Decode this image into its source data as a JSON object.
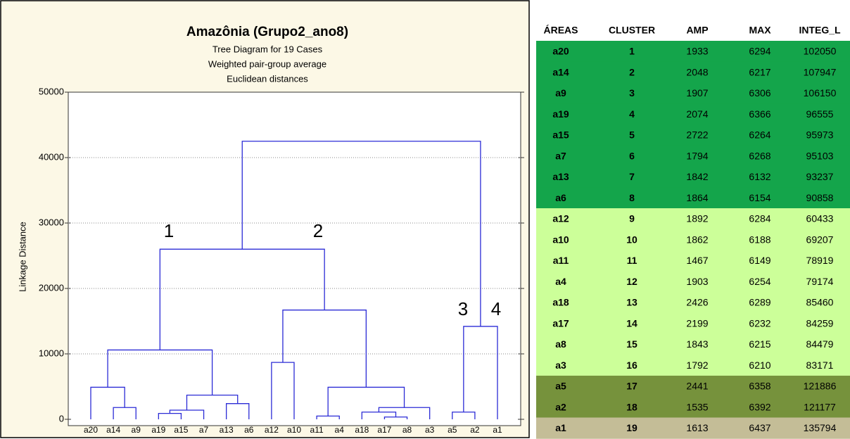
{
  "chart_data": {
    "type": "dendrogram",
    "title": "Amazônia (Grupo2_ano8)",
    "subtitle": [
      "Tree Diagram for 19 Cases",
      "Weighted pair-group average",
      "Euclidean distances"
    ],
    "ylabel": "Linkage Distance",
    "categories": [
      "a20",
      "a14",
      "a9",
      "a19",
      "a15",
      "a7",
      "a13",
      "a6",
      "a12",
      "a10",
      "a11",
      "a4",
      "a18",
      "a17",
      "a8",
      "a3",
      "a5",
      "a2",
      "a1"
    ],
    "merges": [
      [
        13,
        14,
        350
      ],
      [
        10,
        11,
        500
      ],
      [
        3,
        4,
        900
      ],
      [
        12,
        19,
        1100
      ],
      [
        16,
        17,
        1100
      ],
      [
        21,
        5,
        1400
      ],
      [
        1,
        2,
        1800
      ],
      [
        22,
        15,
        1800
      ],
      [
        6,
        7,
        2400
      ],
      [
        24,
        27,
        3700
      ],
      [
        0,
        25,
        4900
      ],
      [
        20,
        26,
        4900
      ],
      [
        8,
        9,
        8700
      ],
      [
        29,
        28,
        10600
      ],
      [
        23,
        18,
        14200
      ],
      [
        31,
        30,
        16700
      ],
      [
        32,
        34,
        26000
      ],
      [
        35,
        33,
        42500
      ]
    ],
    "color": "#2b2bd6",
    "ylim": [
      0,
      50000
    ],
    "yticks": [
      0,
      10000,
      20000,
      30000,
      40000,
      50000
    ],
    "grid": true,
    "annotations": [
      "1",
      "2",
      "3",
      "4"
    ]
  },
  "table": {
    "headers": [
      "ÁREAS",
      "CLUSTER",
      "AMP",
      "MAX",
      "INTEG_L"
    ],
    "rows": [
      [
        "a20",
        1,
        1933,
        6294,
        102050
      ],
      [
        "a14",
        2,
        2048,
        6217,
        107947
      ],
      [
        "a9",
        3,
        1907,
        6306,
        106150
      ],
      [
        "a19",
        4,
        2074,
        6366,
        96555
      ],
      [
        "a15",
        5,
        2722,
        6264,
        95973
      ],
      [
        "a7",
        6,
        1794,
        6268,
        95103
      ],
      [
        "a13",
        7,
        1842,
        6132,
        93237
      ],
      [
        "a6",
        8,
        1864,
        6154,
        90858
      ],
      [
        "a12",
        9,
        1892,
        6284,
        60433
      ],
      [
        "a10",
        10,
        1862,
        6188,
        69207
      ],
      [
        "a11",
        11,
        1467,
        6149,
        78919
      ],
      [
        "a4",
        12,
        1903,
        6254,
        79174
      ],
      [
        "a18",
        13,
        2426,
        6289,
        85460
      ],
      [
        "a17",
        14,
        2199,
        6232,
        84259
      ],
      [
        "a8",
        15,
        1843,
        6215,
        84479
      ],
      [
        "a3",
        16,
        1792,
        6210,
        83171
      ],
      [
        "a5",
        17,
        2441,
        6358,
        121886
      ],
      [
        "a2",
        18,
        1535,
        6392,
        121177
      ],
      [
        "a1",
        19,
        1613,
        6437,
        135794
      ]
    ],
    "row_colors": [
      "#14a54b",
      "#14a54b",
      "#14a54b",
      "#14a54b",
      "#14a54b",
      "#14a54b",
      "#14a54b",
      "#14a54b",
      "#ccff99",
      "#ccff99",
      "#ccff99",
      "#ccff99",
      "#ccff99",
      "#ccff99",
      "#ccff99",
      "#ccff99",
      "#76923c",
      "#76923c",
      "#c4bd97"
    ]
  }
}
